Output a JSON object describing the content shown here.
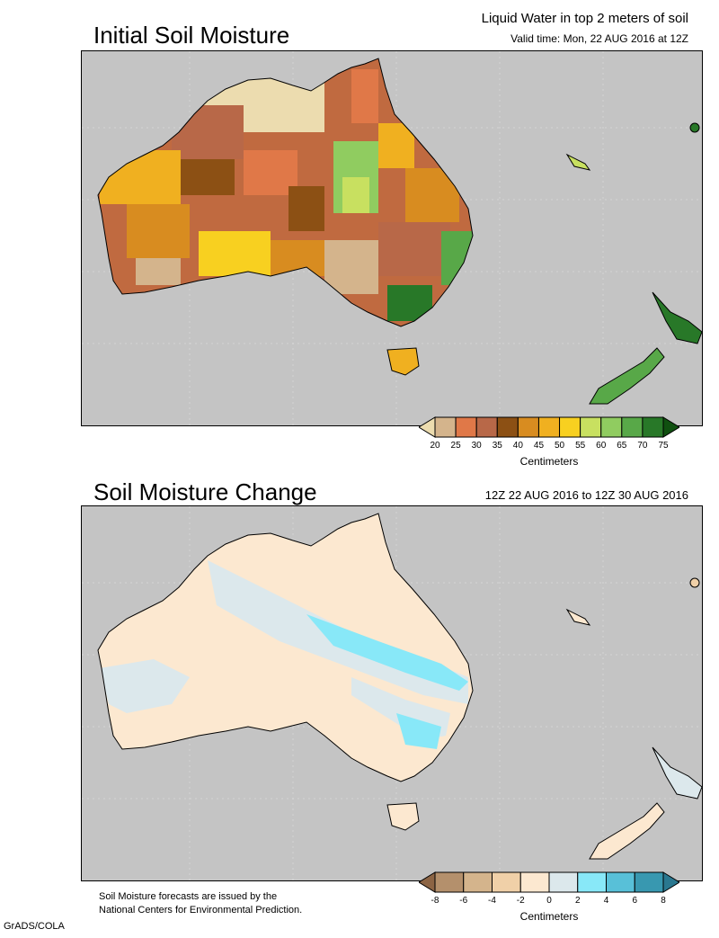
{
  "header": {
    "product_title": "Liquid Water in top 2 meters of soil",
    "valid_time": "Valid time: Mon, 22 AUG 2016 at 12Z"
  },
  "panel_top": {
    "title": "Initial Soil Moisture",
    "colorbar": {
      "unit": "Centimeters",
      "ticks": [
        "20",
        "25",
        "30",
        "35",
        "40",
        "45",
        "50",
        "55",
        "60",
        "65",
        "70",
        "75"
      ],
      "colors": [
        "#ecdcaf",
        "#d4b48c",
        "#e07848",
        "#b86848",
        "#8c5014",
        "#d88c20",
        "#f0b020",
        "#f8d020",
        "#c8e060",
        "#90cc60",
        "#58a848",
        "#287828",
        "#105010"
      ]
    }
  },
  "panel_bottom": {
    "title": "Soil Moisture Change",
    "period": "12Z 22 AUG 2016 to 12Z 30 AUG 2016",
    "colorbar": {
      "unit": "Centimeters",
      "ticks": [
        "-8",
        "-6",
        "-4",
        "-2",
        "0",
        "2",
        "4",
        "6",
        "8"
      ],
      "colors": [
        "#8c6444",
        "#b4906c",
        "#d4b48c",
        "#f0d0a8",
        "#fce8d0",
        "#dce8ec",
        "#88e8f8",
        "#58c0d8",
        "#3898b0",
        "#2a7890"
      ]
    }
  },
  "footer": {
    "note_line1": "Soil Moisture forecasts are issued by the",
    "note_line2": "National Centers for Environmental Prediction.",
    "credit": "GrADS/COLA"
  }
}
